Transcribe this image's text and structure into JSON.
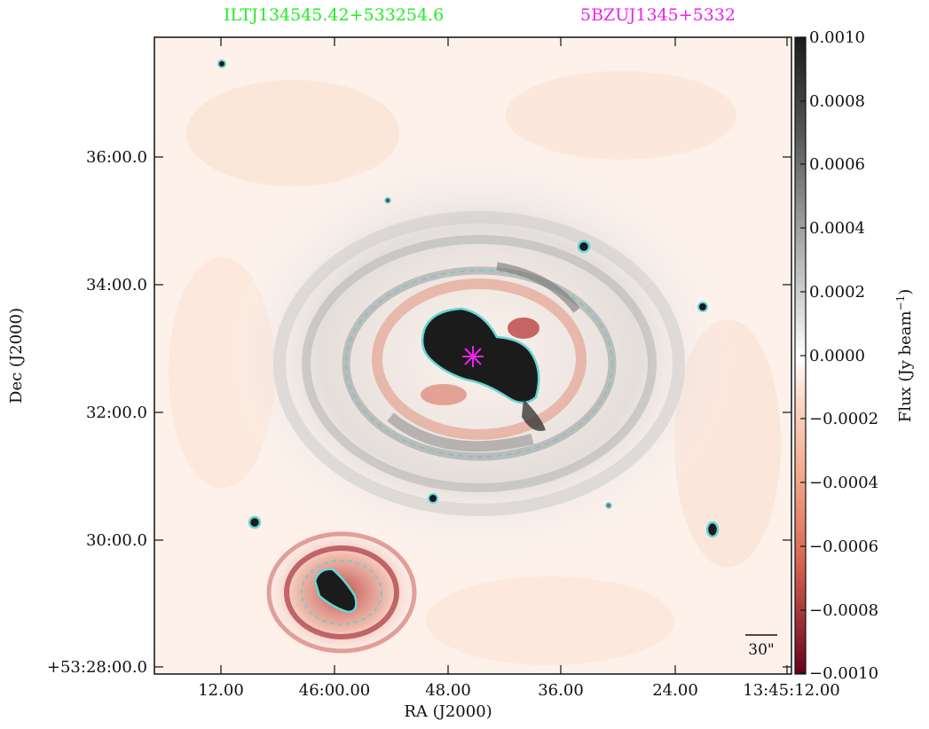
{
  "header": {
    "source_name": "ILTJ134545.42+533254.6",
    "catalog_name": "5BZUJ1345+5332",
    "source_color": "#22ee22",
    "catalog_color": "#ee22ee"
  },
  "axes": {
    "xlabel": "RA (J2000)",
    "ylabel": "Dec (J2000)",
    "x_ticks": [
      "12.00",
      "46:00.00",
      "48.00",
      "36.00",
      "24.00",
      "13:45:12.00"
    ],
    "y_ticks": [
      "36:00.0",
      "34:00.0",
      "32:00.0",
      "30:00.0",
      "+53:28:00.0"
    ]
  },
  "colorbar": {
    "label": "Flux (Jy beam",
    "label_exp": "−1",
    "label_close": ")",
    "ticks": [
      "0.0010",
      "0.0008",
      "0.0006",
      "0.0004",
      "0.0002",
      "0.0000",
      "−0.0002",
      "−0.0004",
      "−0.0006",
      "−0.0008",
      "−0.0010"
    ],
    "vmin": -0.001,
    "vmax": 0.001,
    "colormap": "RdGy_r"
  },
  "scalebar": {
    "label": "30\""
  },
  "marker": {
    "type": "asterisk",
    "color": "#ee22ee"
  },
  "contour_color": "#55cccc"
}
